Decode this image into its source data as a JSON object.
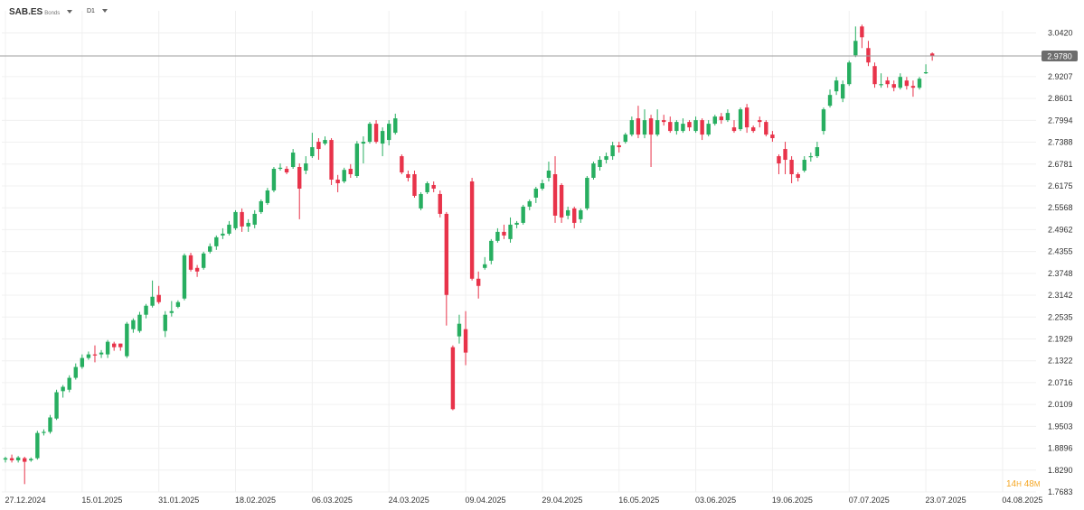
{
  "toolbar": {
    "symbol": "SAB.ES",
    "symbol_sub": "Bonds",
    "timeframe": "D1"
  },
  "countdown": {
    "hours": "14",
    "h_unit": "H",
    "minutes": "48",
    "m_unit": "M"
  },
  "colors": {
    "up": "#27ae60",
    "down": "#e8334a",
    "price_line": "#9e9e9e",
    "price_label_bg": "#6d6d6d"
  },
  "chart_data": {
    "type": "candlestick",
    "title": "",
    "xlabel": "",
    "ylabel": "",
    "ylim": [
      1.7683,
      3.0728
    ],
    "yticks": [
      "1.7683",
      "1.8290",
      "1.8896",
      "1.9503",
      "2.0109",
      "2.0716",
      "2.1322",
      "2.1929",
      "2.2535",
      "2.3142",
      "2.3748",
      "2.4355",
      "2.4962",
      "2.5568",
      "2.6175",
      "2.6781",
      "2.7388",
      "2.7994",
      "2.8601",
      "2.9207",
      "3.0420"
    ],
    "xticks": [
      {
        "label": "27.12.2024",
        "index": 0
      },
      {
        "label": "15.01.2025",
        "index": 12
      },
      {
        "label": "31.01.2025",
        "index": 24
      },
      {
        "label": "18.02.2025",
        "index": 36
      },
      {
        "label": "06.03.2025",
        "index": 48
      },
      {
        "label": "24.03.2025",
        "index": 60
      },
      {
        "label": "09.04.2025",
        "index": 72
      },
      {
        "label": "29.04.2025",
        "index": 84
      },
      {
        "label": "16.05.2025",
        "index": 96
      },
      {
        "label": "03.06.2025",
        "index": 108
      },
      {
        "label": "19.06.2025",
        "index": 120
      },
      {
        "label": "07.07.2025",
        "index": 132
      },
      {
        "label": "23.07.2025",
        "index": 144
      },
      {
        "label": "04.08.2025",
        "index": 156
      }
    ],
    "last_price": "2.9780",
    "last_price_value": 2.978,
    "grid": true,
    "candles": [
      [
        1.858,
        1.862,
        1.866,
        1.85
      ],
      [
        1.862,
        1.856,
        1.872,
        1.85
      ],
      [
        1.856,
        1.864,
        1.868,
        1.85
      ],
      [
        1.862,
        1.852,
        1.866,
        1.79
      ],
      [
        1.856,
        1.86,
        1.864,
        1.852
      ],
      [
        1.862,
        1.932,
        1.938,
        1.858
      ],
      [
        1.932,
        1.935,
        1.942,
        1.925
      ],
      [
        1.935,
        1.975,
        1.982,
        1.93
      ],
      [
        1.972,
        2.045,
        2.052,
        1.968
      ],
      [
        2.048,
        2.06,
        2.065,
        2.03
      ],
      [
        2.052,
        2.085,
        2.092,
        2.045
      ],
      [
        2.085,
        2.115,
        2.125,
        2.08
      ],
      [
        2.115,
        2.14,
        2.15,
        2.11
      ],
      [
        2.14,
        2.15,
        2.158,
        2.135
      ],
      [
        2.15,
        2.148,
        2.175,
        2.128
      ],
      [
        2.15,
        2.155,
        2.162,
        2.14
      ],
      [
        2.15,
        2.185,
        2.19,
        2.14
      ],
      [
        2.18,
        2.17,
        2.185,
        2.16
      ],
      [
        2.18,
        2.17,
        2.18,
        2.16
      ],
      [
        2.145,
        2.235,
        2.24,
        2.14
      ],
      [
        2.22,
        2.245,
        2.25,
        2.21
      ],
      [
        2.215,
        2.26,
        2.268,
        2.21
      ],
      [
        2.26,
        2.285,
        2.29,
        2.25
      ],
      [
        2.285,
        2.31,
        2.355,
        2.28
      ],
      [
        2.315,
        2.295,
        2.34,
        2.29
      ],
      [
        2.215,
        2.26,
        2.27,
        2.198
      ],
      [
        2.265,
        2.27,
        2.298,
        2.255
      ],
      [
        2.282,
        2.295,
        2.3,
        2.278
      ],
      [
        2.305,
        2.425,
        2.43,
        2.3
      ],
      [
        2.425,
        2.385,
        2.432,
        2.38
      ],
      [
        2.39,
        2.38,
        2.398,
        2.365
      ],
      [
        2.39,
        2.43,
        2.435,
        2.385
      ],
      [
        2.435,
        2.45,
        2.458,
        2.43
      ],
      [
        2.45,
        2.475,
        2.48,
        2.44
      ],
      [
        2.48,
        2.485,
        2.5,
        2.47
      ],
      [
        2.485,
        2.51,
        2.52,
        2.48
      ],
      [
        2.5,
        2.545,
        2.55,
        2.495
      ],
      [
        2.545,
        2.505,
        2.555,
        2.49
      ],
      [
        2.505,
        2.515,
        2.525,
        2.49
      ],
      [
        2.51,
        2.54,
        2.55,
        2.5
      ],
      [
        2.545,
        2.575,
        2.58,
        2.54
      ],
      [
        2.57,
        2.605,
        2.612,
        2.565
      ],
      [
        2.605,
        2.665,
        2.67,
        2.6
      ],
      [
        2.665,
        2.668,
        2.68,
        2.66
      ],
      [
        2.665,
        2.655,
        2.672,
        2.65
      ],
      [
        2.67,
        2.71,
        2.72,
        2.665
      ],
      [
        2.67,
        2.61,
        2.68,
        2.525
      ],
      [
        2.66,
        2.68,
        2.7,
        2.65
      ],
      [
        2.7,
        2.725,
        2.765,
        2.695
      ],
      [
        2.74,
        2.72,
        2.75,
        2.69
      ],
      [
        2.735,
        2.745,
        2.755,
        2.73
      ],
      [
        2.745,
        2.635,
        2.75,
        2.62
      ],
      [
        2.635,
        2.625,
        2.648,
        2.6
      ],
      [
        2.63,
        2.662,
        2.668,
        2.625
      ],
      [
        2.665,
        2.65,
        2.678,
        2.64
      ],
      [
        2.645,
        2.735,
        2.742,
        2.64
      ],
      [
        2.735,
        2.74,
        2.755,
        2.68
      ],
      [
        2.74,
        2.79,
        2.795,
        2.735
      ],
      [
        2.79,
        2.74,
        2.8,
        2.735
      ],
      [
        2.735,
        2.77,
        2.78,
        2.7
      ],
      [
        2.745,
        2.79,
        2.8,
        2.73
      ],
      [
        2.765,
        2.805,
        2.818,
        2.76
      ],
      [
        2.7,
        2.655,
        2.705,
        2.65
      ],
      [
        2.65,
        2.64,
        2.66,
        2.63
      ],
      [
        2.65,
        2.59,
        2.66,
        2.585
      ],
      [
        2.555,
        2.595,
        2.6,
        2.55
      ],
      [
        2.6,
        2.625,
        2.63,
        2.595
      ],
      [
        2.62,
        2.61,
        2.63,
        2.6
      ],
      [
        2.595,
        2.54,
        2.605,
        2.53
      ],
      [
        2.54,
        2.315,
        2.545,
        2.23
      ],
      [
        2.17,
        1.998,
        2.175,
        1.995
      ],
      [
        2.2,
        2.235,
        2.26,
        2.18
      ],
      [
        2.22,
        2.155,
        2.27,
        2.12
      ],
      [
        2.63,
        2.36,
        2.64,
        2.355
      ],
      [
        2.36,
        2.34,
        2.38,
        2.305
      ],
      [
        2.39,
        2.4,
        2.42,
        2.385
      ],
      [
        2.41,
        2.465,
        2.47,
        2.4
      ],
      [
        2.465,
        2.49,
        2.5,
        2.46
      ],
      [
        2.49,
        2.48,
        2.51,
        2.47
      ],
      [
        2.47,
        2.51,
        2.53,
        2.46
      ],
      [
        2.51,
        2.515,
        2.52,
        2.5
      ],
      [
        2.515,
        2.56,
        2.565,
        2.51
      ],
      [
        2.56,
        2.575,
        2.58,
        2.55
      ],
      [
        2.585,
        2.61,
        2.615,
        2.57
      ],
      [
        2.61,
        2.625,
        2.635,
        2.605
      ],
      [
        2.64,
        2.66,
        2.685,
        2.63
      ],
      [
        2.65,
        2.535,
        2.7,
        2.515
      ],
      [
        2.62,
        2.53,
        2.625,
        2.515
      ],
      [
        2.535,
        2.55,
        2.56,
        2.525
      ],
      [
        2.555,
        2.515,
        2.56,
        2.5
      ],
      [
        2.525,
        2.55,
        2.555,
        2.515
      ],
      [
        2.555,
        2.64,
        2.645,
        2.55
      ],
      [
        2.64,
        2.68,
        2.685,
        2.635
      ],
      [
        2.67,
        2.69,
        2.7,
        2.66
      ],
      [
        2.69,
        2.7,
        2.71,
        2.68
      ],
      [
        2.7,
        2.73,
        2.74,
        2.69
      ],
      [
        2.73,
        2.725,
        2.74,
        2.71
      ],
      [
        2.74,
        2.76,
        2.765,
        2.735
      ],
      [
        2.76,
        2.8,
        2.81,
        2.755
      ],
      [
        2.805,
        2.76,
        2.84,
        2.75
      ],
      [
        2.76,
        2.8,
        2.83,
        2.75
      ],
      [
        2.805,
        2.76,
        2.815,
        2.67
      ],
      [
        2.76,
        2.8,
        2.83,
        2.755
      ],
      [
        2.8,
        2.795,
        2.815,
        2.785
      ],
      [
        2.795,
        2.77,
        2.81,
        2.765
      ],
      [
        2.77,
        2.795,
        2.8,
        2.76
      ],
      [
        2.77,
        2.79,
        2.805,
        2.765
      ],
      [
        2.795,
        2.78,
        2.8,
        2.77
      ],
      [
        2.77,
        2.8,
        2.81,
        2.765
      ],
      [
        2.8,
        2.76,
        2.805,
        2.745
      ],
      [
        2.76,
        2.79,
        2.8,
        2.755
      ],
      [
        2.79,
        2.81,
        2.815,
        2.785
      ],
      [
        2.81,
        2.8,
        2.82,
        2.79
      ],
      [
        2.8,
        2.82,
        2.83,
        2.795
      ],
      [
        2.78,
        2.77,
        2.8,
        2.765
      ],
      [
        2.775,
        2.83,
        2.835,
        2.77
      ],
      [
        2.835,
        2.78,
        2.845,
        2.765
      ],
      [
        2.78,
        2.77,
        2.785,
        2.765
      ],
      [
        2.8,
        2.795,
        2.81,
        2.78
      ],
      [
        2.795,
        2.76,
        2.8,
        2.755
      ],
      [
        2.76,
        2.75,
        2.77,
        2.74
      ],
      [
        2.7,
        2.68,
        2.705,
        2.65
      ],
      [
        2.72,
        2.69,
        2.74,
        2.65
      ],
      [
        2.69,
        2.65,
        2.7,
        2.625
      ],
      [
        2.65,
        2.64,
        2.655,
        2.63
      ],
      [
        2.66,
        2.69,
        2.7,
        2.655
      ],
      [
        2.7,
        2.7,
        2.71,
        2.685
      ],
      [
        2.7,
        2.725,
        2.74,
        2.695
      ],
      [
        2.77,
        2.83,
        2.835,
        2.76
      ],
      [
        2.84,
        2.87,
        2.885,
        2.835
      ],
      [
        2.88,
        2.91,
        2.92,
        2.87
      ],
      [
        2.86,
        2.9,
        2.91,
        2.85
      ],
      [
        2.9,
        2.96,
        2.965,
        2.895
      ],
      [
        2.98,
        3.02,
        3.06,
        2.975
      ],
      [
        3.06,
        3.03,
        3.065,
        3.0
      ],
      [
        3.0,
        2.96,
        3.02,
        2.95
      ],
      [
        2.95,
        2.9,
        2.96,
        2.89
      ],
      [
        2.9,
        2.9,
        2.93,
        2.89
      ],
      [
        2.91,
        2.9,
        2.92,
        2.89
      ],
      [
        2.9,
        2.89,
        2.91,
        2.88
      ],
      [
        2.89,
        2.92,
        2.93,
        2.885
      ],
      [
        2.91,
        2.895,
        2.92,
        2.885
      ],
      [
        2.895,
        2.89,
        2.91,
        2.865
      ],
      [
        2.89,
        2.915,
        2.92,
        2.885
      ],
      [
        2.93,
        2.933,
        2.955,
        2.928
      ],
      [
        2.985,
        2.978,
        2.988,
        2.965
      ]
    ]
  }
}
